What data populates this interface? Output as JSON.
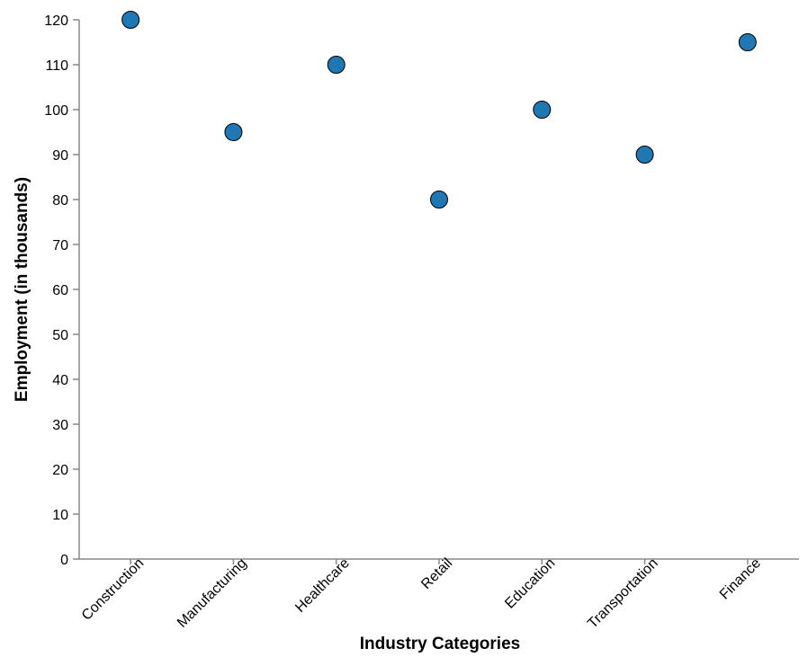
{
  "chart_data": {
    "type": "scatter",
    "title": "",
    "xlabel": "Industry Categories",
    "ylabel": "Employment (in thousands)",
    "categories": [
      "Construction",
      "Manufacturing",
      "Healthcare",
      "Retail",
      "Education",
      "Transportation",
      "Finance"
    ],
    "values": [
      120,
      95,
      110,
      80,
      100,
      90,
      115
    ],
    "ylim": [
      0,
      120
    ],
    "yticks": [
      0,
      10,
      20,
      30,
      40,
      50,
      60,
      70,
      80,
      90,
      100,
      110,
      120
    ],
    "grid": false,
    "point_color": "#1f77b4",
    "point_stroke": "#000000"
  }
}
